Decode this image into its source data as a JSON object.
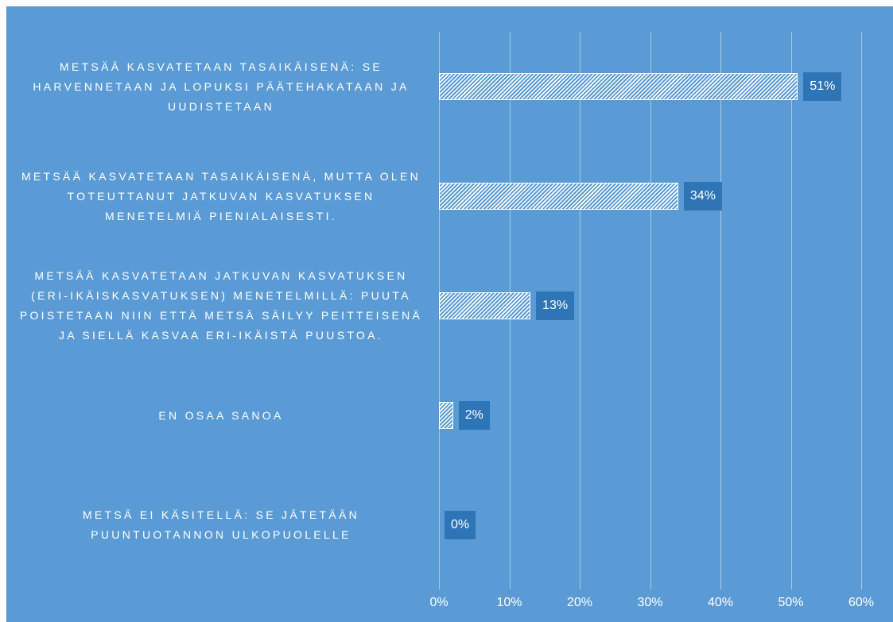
{
  "chart_data": {
    "type": "bar",
    "orientation": "horizontal",
    "categories": [
      "METSÄÄ KASVATETAAN TASAIKÄISENÄ: SE HARVENNETAAN JA LOPUKSI PÄÄTEHAKATAAN JA UUDISTETAAN",
      "METSÄÄ KASVATETAAN TASAIKÄISENÄ, MUTTA OLEN TOTEUTTANUT JATKUVAN KASVATUKSEN MENETELMIÄ PIENIALAISESTI.",
      "METSÄÄ KASVATETAAN JATKUVAN KASVATUKSEN (ERI-IKÄISKASVATUKSEN) MENETELMILLÄ: PUUTA POISTETAAN NIIN ETTÄ METSÄ SÄILYY PEITTEISENÄ JA SIELLÄ KASVAA ERI-IKÄISTÄ PUUSTOA.",
      "EN OSAA SANOA",
      "METSÄ EI KÄSITELLÄ: SE JÄTETÄÄN PUUNTUOTANNON ULKOPUOLELLE"
    ],
    "values": [
      51,
      34,
      13,
      2,
      0
    ],
    "value_labels": [
      "51%",
      "34%",
      "13%",
      "2%",
      "0%"
    ],
    "color": "#ffffff",
    "label_box_color": "#2e75b6",
    "background": "#5b9bd5",
    "xlim": [
      0,
      60
    ],
    "xticks": [
      {
        "value": 0,
        "label": "0%"
      },
      {
        "value": 10,
        "label": "10%"
      },
      {
        "value": 20,
        "label": "20%"
      },
      {
        "value": 30,
        "label": "30%"
      },
      {
        "value": 40,
        "label": "40%"
      },
      {
        "value": 50,
        "label": "50%"
      },
      {
        "value": 60,
        "label": "60%"
      }
    ],
    "grid": true
  }
}
